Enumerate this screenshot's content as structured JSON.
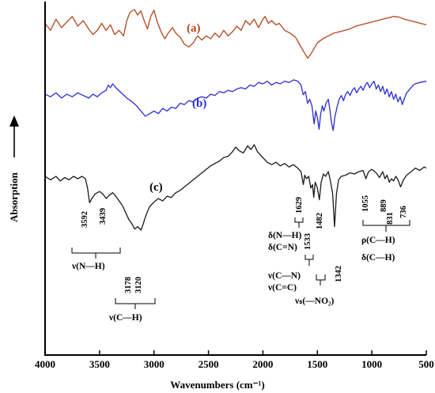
{
  "chart_data": {
    "type": "line",
    "xlabel": "Wavenumbers (cm⁻¹)",
    "ylabel": "Absorption",
    "xlim": [
      4000,
      500
    ],
    "x_reversed": true,
    "x_ticks": [
      "4000",
      "3500",
      "3000",
      "2500",
      "2000",
      "1500",
      "1000",
      "500"
    ],
    "grid": false,
    "y_ticks_shown": false,
    "series": [
      {
        "name": "(a)",
        "color": "#b5451b",
        "points": [
          [
            4000,
            0.8
          ],
          [
            3950,
            0.7
          ],
          [
            3900,
            0.86
          ],
          [
            3850,
            0.74
          ],
          [
            3800,
            0.82
          ],
          [
            3750,
            0.9
          ],
          [
            3700,
            0.76
          ],
          [
            3650,
            0.84
          ],
          [
            3600,
            0.72
          ],
          [
            3560,
            0.64
          ],
          [
            3520,
            0.7
          ],
          [
            3480,
            0.8
          ],
          [
            3440,
            0.7
          ],
          [
            3400,
            0.78
          ],
          [
            3360,
            0.64
          ],
          [
            3320,
            0.7
          ],
          [
            3280,
            0.62
          ],
          [
            3250,
            0.84
          ],
          [
            3220,
            0.96
          ],
          [
            3180,
            1.0
          ],
          [
            3150,
            0.92
          ],
          [
            3120,
            0.98
          ],
          [
            3090,
            0.84
          ],
          [
            3060,
            0.72
          ],
          [
            3030,
            0.9
          ],
          [
            3000,
            0.99
          ],
          [
            2970,
            0.82
          ],
          [
            2930,
            0.66
          ],
          [
            2900,
            0.58
          ],
          [
            2870,
            0.66
          ],
          [
            2830,
            0.74
          ],
          [
            2800,
            0.66
          ],
          [
            2760,
            0.6
          ],
          [
            2720,
            0.5
          ],
          [
            2680,
            0.46
          ],
          [
            2640,
            0.52
          ],
          [
            2600,
            0.62
          ],
          [
            2560,
            0.56
          ],
          [
            2520,
            0.62
          ],
          [
            2480,
            0.58
          ],
          [
            2440,
            0.66
          ],
          [
            2400,
            0.6
          ],
          [
            2360,
            0.7
          ],
          [
            2320,
            0.62
          ],
          [
            2280,
            0.68
          ],
          [
            2240,
            0.76
          ],
          [
            2200,
            0.7
          ],
          [
            2160,
            0.84
          ],
          [
            2120,
            0.78
          ],
          [
            2080,
            0.86
          ],
          [
            2040,
            0.74
          ],
          [
            2000,
            0.86
          ],
          [
            1980,
            0.9
          ],
          [
            1950,
            0.8
          ],
          [
            1920,
            0.84
          ],
          [
            1880,
            0.78
          ],
          [
            1850,
            0.8
          ],
          [
            1800,
            0.7
          ],
          [
            1750,
            0.66
          ],
          [
            1700,
            0.6
          ],
          [
            1650,
            0.46
          ],
          [
            1620,
            0.38
          ],
          [
            1590,
            0.3
          ],
          [
            1560,
            0.36
          ],
          [
            1530,
            0.44
          ],
          [
            1500,
            0.52
          ],
          [
            1450,
            0.58
          ],
          [
            1400,
            0.62
          ],
          [
            1350,
            0.66
          ],
          [
            1300,
            0.68
          ],
          [
            1250,
            0.7
          ],
          [
            1200,
            0.72
          ],
          [
            1150,
            0.76
          ],
          [
            1100,
            0.78
          ],
          [
            1050,
            0.8
          ],
          [
            1000,
            0.82
          ],
          [
            950,
            0.84
          ],
          [
            900,
            0.86
          ],
          [
            850,
            0.88
          ],
          [
            800,
            0.9
          ],
          [
            750,
            0.89
          ],
          [
            700,
            0.86
          ],
          [
            650,
            0.84
          ],
          [
            600,
            0.82
          ],
          [
            550,
            0.8
          ],
          [
            500,
            0.78
          ]
        ]
      },
      {
        "name": "(b)",
        "color": "#2b2bd6",
        "points": [
          [
            4000,
            0.56
          ],
          [
            3950,
            0.52
          ],
          [
            3900,
            0.58
          ],
          [
            3850,
            0.5
          ],
          [
            3800,
            0.56
          ],
          [
            3750,
            0.52
          ],
          [
            3700,
            0.58
          ],
          [
            3650,
            0.54
          ],
          [
            3600,
            0.5
          ],
          [
            3560,
            0.56
          ],
          [
            3520,
            0.52
          ],
          [
            3480,
            0.58
          ],
          [
            3440,
            0.62
          ],
          [
            3420,
            0.7
          ],
          [
            3400,
            0.66
          ],
          [
            3380,
            0.72
          ],
          [
            3350,
            0.66
          ],
          [
            3300,
            0.58
          ],
          [
            3250,
            0.5
          ],
          [
            3200,
            0.44
          ],
          [
            3160,
            0.38
          ],
          [
            3120,
            0.3
          ],
          [
            3080,
            0.22
          ],
          [
            3040,
            0.26
          ],
          [
            3000,
            0.3
          ],
          [
            2960,
            0.26
          ],
          [
            2920,
            0.34
          ],
          [
            2880,
            0.3
          ],
          [
            2840,
            0.36
          ],
          [
            2800,
            0.34
          ],
          [
            2760,
            0.42
          ],
          [
            2720,
            0.4
          ],
          [
            2680,
            0.46
          ],
          [
            2640,
            0.44
          ],
          [
            2600,
            0.5
          ],
          [
            2560,
            0.52
          ],
          [
            2520,
            0.5
          ],
          [
            2480,
            0.56
          ],
          [
            2440,
            0.54
          ],
          [
            2400,
            0.6
          ],
          [
            2360,
            0.58
          ],
          [
            2320,
            0.62
          ],
          [
            2280,
            0.6
          ],
          [
            2240,
            0.64
          ],
          [
            2200,
            0.66
          ],
          [
            2160,
            0.64
          ],
          [
            2120,
            0.7
          ],
          [
            2080,
            0.68
          ],
          [
            2040,
            0.74
          ],
          [
            2000,
            0.72
          ],
          [
            1960,
            0.76
          ],
          [
            1920,
            0.7
          ],
          [
            1880,
            0.74
          ],
          [
            1840,
            0.72
          ],
          [
            1800,
            0.76
          ],
          [
            1760,
            0.74
          ],
          [
            1720,
            0.78
          ],
          [
            1680,
            0.76
          ],
          [
            1650,
            0.7
          ],
          [
            1630,
            0.55
          ],
          [
            1610,
            0.6
          ],
          [
            1590,
            0.42
          ],
          [
            1570,
            0.48
          ],
          [
            1550,
            0.38
          ],
          [
            1530,
            0.1
          ],
          [
            1515,
            0.3
          ],
          [
            1500,
            0.2
          ],
          [
            1485,
            0.02
          ],
          [
            1470,
            0.25
          ],
          [
            1455,
            0.38
          ],
          [
            1440,
            0.3
          ],
          [
            1420,
            0.42
          ],
          [
            1400,
            0.48
          ],
          [
            1385,
            0.32
          ],
          [
            1370,
            0.12
          ],
          [
            1355,
            0.0
          ],
          [
            1340,
            0.2
          ],
          [
            1320,
            0.36
          ],
          [
            1300,
            0.48
          ],
          [
            1280,
            0.54
          ],
          [
            1260,
            0.46
          ],
          [
            1240,
            0.56
          ],
          [
            1220,
            0.6
          ],
          [
            1200,
            0.54
          ],
          [
            1180,
            0.62
          ],
          [
            1160,
            0.66
          ],
          [
            1140,
            0.58
          ],
          [
            1120,
            0.64
          ],
          [
            1100,
            0.68
          ],
          [
            1080,
            0.62
          ],
          [
            1060,
            0.7
          ],
          [
            1040,
            0.74
          ],
          [
            1020,
            0.66
          ],
          [
            1000,
            0.72
          ],
          [
            980,
            0.76
          ],
          [
            960,
            0.64
          ],
          [
            940,
            0.7
          ],
          [
            920,
            0.6
          ],
          [
            900,
            0.68
          ],
          [
            880,
            0.56
          ],
          [
            860,
            0.64
          ],
          [
            840,
            0.52
          ],
          [
            820,
            0.6
          ],
          [
            800,
            0.48
          ],
          [
            780,
            0.56
          ],
          [
            760,
            0.44
          ],
          [
            740,
            0.52
          ],
          [
            720,
            0.4
          ],
          [
            700,
            0.5
          ],
          [
            680,
            0.58
          ],
          [
            660,
            0.62
          ],
          [
            640,
            0.66
          ],
          [
            620,
            0.7
          ],
          [
            600,
            0.72
          ],
          [
            560,
            0.74
          ],
          [
            500,
            0.76
          ]
        ]
      },
      {
        "name": "(c)",
        "color": "#1a1a1a",
        "points": [
          [
            4000,
            0.5
          ],
          [
            3950,
            0.44
          ],
          [
            3900,
            0.5
          ],
          [
            3860,
            0.42
          ],
          [
            3820,
            0.48
          ],
          [
            3780,
            0.44
          ],
          [
            3740,
            0.5
          ],
          [
            3700,
            0.46
          ],
          [
            3660,
            0.5
          ],
          [
            3630,
            0.46
          ],
          [
            3610,
            0.3
          ],
          [
            3592,
            0.05
          ],
          [
            3570,
            0.12
          ],
          [
            3540,
            0.2
          ],
          [
            3500,
            0.24
          ],
          [
            3470,
            0.2
          ],
          [
            3439,
            0.12
          ],
          [
            3410,
            0.18
          ],
          [
            3380,
            0.22
          ],
          [
            3350,
            0.16
          ],
          [
            3320,
            0.08
          ],
          [
            3290,
            0.0
          ],
          [
            3260,
            -0.12
          ],
          [
            3230,
            -0.24
          ],
          [
            3200,
            -0.32
          ],
          [
            3178,
            -0.4
          ],
          [
            3150,
            -0.36
          ],
          [
            3120,
            -0.42
          ],
          [
            3100,
            -0.32
          ],
          [
            3080,
            -0.2
          ],
          [
            3060,
            -0.1
          ],
          [
            3040,
            -0.02
          ],
          [
            3000,
            0.06
          ],
          [
            2960,
            0.12
          ],
          [
            2920,
            0.08
          ],
          [
            2880,
            0.16
          ],
          [
            2840,
            0.14
          ],
          [
            2800,
            0.22
          ],
          [
            2760,
            0.26
          ],
          [
            2720,
            0.32
          ],
          [
            2680,
            0.38
          ],
          [
            2640,
            0.44
          ],
          [
            2600,
            0.5
          ],
          [
            2560,
            0.56
          ],
          [
            2520,
            0.62
          ],
          [
            2480,
            0.68
          ],
          [
            2440,
            0.72
          ],
          [
            2400,
            0.76
          ],
          [
            2360,
            0.82
          ],
          [
            2320,
            0.84
          ],
          [
            2280,
            0.92
          ],
          [
            2250,
            1.0
          ],
          [
            2220,
            0.94
          ],
          [
            2180,
            0.9
          ],
          [
            2140,
            1.02
          ],
          [
            2110,
            0.96
          ],
          [
            2080,
            1.04
          ],
          [
            2050,
            0.92
          ],
          [
            2020,
            0.86
          ],
          [
            1990,
            0.8
          ],
          [
            1960,
            0.74
          ],
          [
            1920,
            0.7
          ],
          [
            1880,
            0.74
          ],
          [
            1840,
            0.68
          ],
          [
            1800,
            0.72
          ],
          [
            1760,
            0.66
          ],
          [
            1720,
            0.7
          ],
          [
            1680,
            0.64
          ],
          [
            1650,
            0.58
          ],
          [
            1629,
            0.36
          ],
          [
            1615,
            0.52
          ],
          [
            1600,
            0.46
          ],
          [
            1580,
            0.5
          ],
          [
            1560,
            0.3
          ],
          [
            1545,
            0.36
          ],
          [
            1533,
            0.14
          ],
          [
            1520,
            0.4
          ],
          [
            1500,
            0.3
          ],
          [
            1482,
            0.1
          ],
          [
            1465,
            0.4
          ],
          [
            1445,
            0.54
          ],
          [
            1425,
            0.5
          ],
          [
            1400,
            0.58
          ],
          [
            1380,
            0.42
          ],
          [
            1360,
            0.2
          ],
          [
            1342,
            -0.36
          ],
          [
            1325,
            0.2
          ],
          [
            1305,
            0.44
          ],
          [
            1280,
            0.5
          ],
          [
            1240,
            0.52
          ],
          [
            1200,
            0.56
          ],
          [
            1160,
            0.54
          ],
          [
            1120,
            0.58
          ],
          [
            1080,
            0.6
          ],
          [
            1055,
            0.46
          ],
          [
            1030,
            0.58
          ],
          [
            1000,
            0.62
          ],
          [
            960,
            0.56
          ],
          [
            930,
            0.48
          ],
          [
            900,
            0.58
          ],
          [
            880,
            0.46
          ],
          [
            860,
            0.52
          ],
          [
            840,
            0.4
          ],
          [
            820,
            0.46
          ],
          [
            800,
            0.42
          ],
          [
            780,
            0.5
          ],
          [
            760,
            0.44
          ],
          [
            736,
            0.32
          ],
          [
            710,
            0.44
          ],
          [
            680,
            0.52
          ],
          [
            640,
            0.58
          ],
          [
            600,
            0.64
          ],
          [
            560,
            0.6
          ],
          [
            520,
            0.66
          ],
          [
            500,
            0.64
          ]
        ]
      }
    ],
    "peak_labels": [
      "3592",
      "3439",
      "3178",
      "3120",
      "1629",
      "1533",
      "1482",
      "1342",
      "1055",
      "889",
      "831",
      "736"
    ],
    "band_annotations": [
      "ν(N—H)",
      "ν(C—H)",
      "δ(N—H)",
      "δ(C=N)",
      "ν(C—N)",
      "ν(C=C)",
      "νₛ(—NO₂)",
      "ρ(C—H)",
      "δ(C—H)"
    ]
  }
}
